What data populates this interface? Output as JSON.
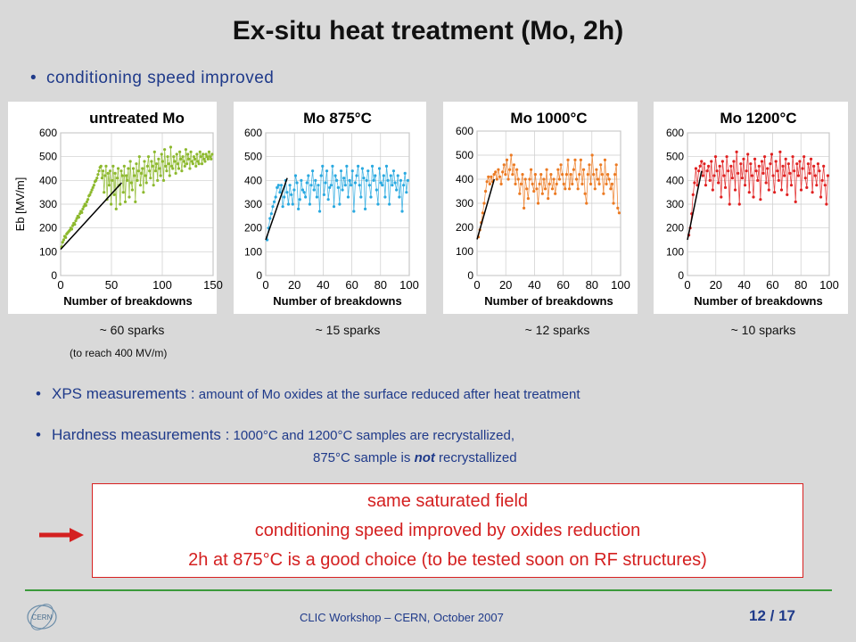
{
  "slide": {
    "title": "Ex-situ heat treatment (Mo, 2h)",
    "bullet1": "conditioning speed improved",
    "bullet_symbol": "•",
    "sparks": [
      "~ 60 sparks",
      "~ 15 sparks",
      "~ 12 sparks",
      "~ 10 sparks"
    ],
    "spark_note": "(to reach 400 MV/m)",
    "bullet2_lead": "XPS measurements :",
    "bullet2_rest": " amount of Mo oxides at the surface reduced after heat treatment",
    "bullet3_lead": "Hardness measurements :",
    "bullet3_rest": " 1000°C and 1200°C samples are recrystallized,",
    "bullet3b_pre": "875°C sample is ",
    "bullet3b_em": "not",
    "bullet3b_post": " recrystallized",
    "conclusion": [
      "same saturated field",
      "conditioning speed improved by oxides reduction",
      "2h at 875°C is a good choice (to be tested soon on RF structures)"
    ],
    "footer_text": "CLIC Workshop – CERN, October 2007",
    "page_number": "12 / 17",
    "logo_text": "CERN",
    "accent_color": "#1f3a8a",
    "conclusion_color": "#d42020"
  },
  "chart_data": [
    {
      "type": "line",
      "title": "untreated Mo",
      "ylabel": "Eb [MV/m]",
      "xlabel": "Number of breakdowns",
      "xlim": [
        0,
        150
      ],
      "ylim": [
        0,
        600
      ],
      "xticks": [
        0,
        50,
        100,
        150
      ],
      "yticks": [
        0,
        100,
        200,
        300,
        400,
        500,
        600
      ],
      "color": "#8db92e",
      "grid": true,
      "fit_line": {
        "x": [
          0,
          60
        ],
        "y": [
          110,
          390
        ]
      },
      "y": [
        120,
        140,
        150,
        165,
        160,
        175,
        180,
        185,
        190,
        200,
        195,
        210,
        220,
        215,
        230,
        240,
        250,
        245,
        260,
        270,
        265,
        280,
        290,
        300,
        295,
        310,
        320,
        335,
        340,
        350,
        360,
        370,
        380,
        395,
        400,
        410,
        425,
        440,
        455,
        460,
        410,
        440,
        350,
        420,
        460,
        320,
        430,
        380,
        440,
        300,
        400,
        460,
        340,
        430,
        280,
        410,
        450,
        380,
        300,
        440,
        420,
        350,
        460,
        310,
        420,
        400,
        450,
        330,
        480,
        390,
        360,
        450,
        420,
        310,
        470,
        400,
        440,
        500,
        380,
        430,
        450,
        350,
        480,
        420,
        390,
        460,
        500,
        440,
        410,
        480,
        460,
        380,
        520,
        440,
        470,
        400,
        490,
        450,
        420,
        510,
        480,
        400,
        530,
        460,
        440,
        500,
        470,
        420,
        540,
        460,
        450,
        500,
        480,
        430,
        510,
        470,
        450,
        520,
        490,
        440,
        500,
        480,
        460,
        530,
        470,
        510,
        490,
        450,
        520,
        480,
        470,
        500,
        490,
        460,
        510,
        480,
        470,
        520,
        500,
        470,
        510,
        490,
        480,
        510,
        500,
        490,
        520,
        500,
        490,
        510
      ]
    },
    {
      "type": "line",
      "title": "Mo 875°C",
      "xlabel": "Number of breakdowns",
      "xlim": [
        0,
        100
      ],
      "ylim": [
        0,
        600
      ],
      "xticks": [
        0,
        20,
        40,
        60,
        80,
        100
      ],
      "yticks": [
        0,
        100,
        200,
        300,
        400,
        500,
        600
      ],
      "color": "#29a9e0",
      "grid": true,
      "fit_line": {
        "x": [
          0,
          15
        ],
        "y": [
          150,
          410
        ]
      },
      "y": [
        150,
        200,
        240,
        260,
        290,
        310,
        330,
        370,
        380,
        350,
        380,
        290,
        330,
        400,
        350,
        300,
        380,
        340,
        300,
        360,
        420,
        390,
        280,
        320,
        400,
        360,
        350,
        330,
        390,
        420,
        300,
        380,
        440,
        360,
        400,
        330,
        380,
        270,
        420,
        460,
        340,
        390,
        440,
        320,
        370,
        380,
        460,
        290,
        420,
        400,
        370,
        300,
        440,
        360,
        410,
        380,
        460,
        330,
        400,
        380,
        440,
        270,
        390,
        420,
        460,
        380,
        330,
        450,
        410,
        280,
        400,
        440,
        380,
        330,
        460,
        400,
        420,
        360,
        300,
        450,
        390,
        380,
        420,
        330,
        460,
        400,
        300,
        420,
        380,
        440,
        390,
        360,
        420,
        330,
        400,
        270,
        380,
        430,
        350,
        400
      ]
    },
    {
      "type": "line",
      "title": "Mo 1000°C",
      "xlabel": "Number of breakdowns",
      "xlim": [
        0,
        100
      ],
      "ylim": [
        0,
        600
      ],
      "xticks": [
        0,
        20,
        40,
        60,
        80,
        100
      ],
      "yticks": [
        0,
        100,
        200,
        300,
        400,
        500,
        600
      ],
      "color": "#ec7a22",
      "grid": true,
      "fit_line": {
        "x": [
          0,
          12
        ],
        "y": [
          150,
          400
        ]
      },
      "y": [
        160,
        190,
        220,
        260,
        300,
        350,
        390,
        410,
        380,
        410,
        390,
        420,
        430,
        400,
        440,
        410,
        380,
        430,
        460,
        420,
        480,
        400,
        440,
        500,
        420,
        460,
        380,
        440,
        400,
        340,
        380,
        420,
        280,
        400,
        360,
        320,
        400,
        440,
        380,
        350,
        420,
        360,
        300,
        380,
        420,
        340,
        400,
        360,
        440,
        320,
        380,
        420,
        360,
        400,
        340,
        380,
        440,
        400,
        460,
        420,
        380,
        360,
        420,
        480,
        360,
        420,
        380,
        440,
        480,
        400,
        360,
        420,
        480,
        380,
        440,
        340,
        300,
        420,
        460,
        380,
        500,
        420,
        360,
        440,
        400,
        380,
        460,
        420,
        340,
        480,
        380,
        420,
        400,
        360,
        380,
        300,
        420,
        460,
        280,
        260
      ]
    },
    {
      "type": "line",
      "title": "Mo 1200°C",
      "xlabel": "Number of breakdowns",
      "xlim": [
        0,
        100
      ],
      "ylim": [
        0,
        600
      ],
      "xticks": [
        0,
        20,
        40,
        60,
        80,
        100
      ],
      "yticks": [
        0,
        100,
        200,
        300,
        400,
        500,
        600
      ],
      "color": "#e02020",
      "grid": true,
      "fit_line": {
        "x": [
          0,
          10
        ],
        "y": [
          150,
          440
        ]
      },
      "y": [
        170,
        200,
        260,
        340,
        390,
        450,
        380,
        440,
        460,
        480,
        420,
        470,
        380,
        440,
        460,
        400,
        480,
        360,
        420,
        500,
        440,
        390,
        460,
        330,
        480,
        420,
        370,
        500,
        440,
        300,
        460,
        410,
        480,
        360,
        520,
        430,
        300,
        470,
        410,
        490,
        380,
        440,
        510,
        350,
        470,
        420,
        330,
        490,
        440,
        400,
        460,
        320,
        480,
        430,
        500,
        390,
        450,
        360,
        470,
        510,
        420,
        350,
        480,
        440,
        400,
        520,
        360,
        460,
        420,
        490,
        340,
        470,
        430,
        380,
        500,
        440,
        310,
        470,
        420,
        480,
        360,
        450,
        500,
        410,
        370,
        470,
        430,
        490,
        350,
        460,
        420,
        380,
        470,
        440,
        330,
        400,
        460,
        380,
        300,
        420
      ]
    }
  ]
}
